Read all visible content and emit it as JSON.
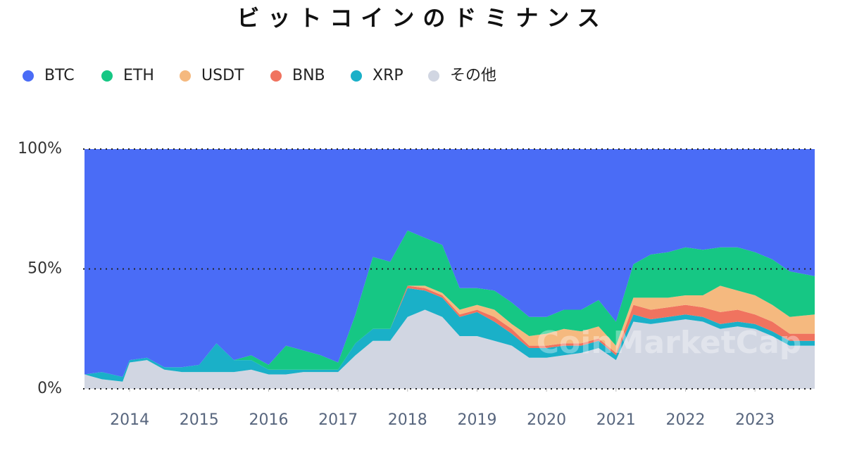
{
  "chart_data": {
    "type": "stacked_area",
    "title": "ビットコインのドミナンス",
    "watermark": "CoinMarketCap",
    "x": [
      2013.35,
      2013.6,
      2013.9,
      2014.0,
      2014.25,
      2014.5,
      2014.75,
      2015.0,
      2015.25,
      2015.5,
      2015.75,
      2016.0,
      2016.25,
      2016.5,
      2016.75,
      2017.0,
      2017.25,
      2017.5,
      2017.75,
      2018.0,
      2018.25,
      2018.5,
      2018.75,
      2019.0,
      2019.25,
      2019.5,
      2019.75,
      2020.0,
      2020.25,
      2020.5,
      2020.75,
      2021.0,
      2021.25,
      2021.5,
      2021.75,
      2022.0,
      2022.25,
      2022.5,
      2022.75,
      2023.0,
      2023.25,
      2023.5,
      2023.86
    ],
    "xlim": [
      2013.33,
      2023.87
    ],
    "xticks": [
      2014,
      2015,
      2016,
      2017,
      2018,
      2019,
      2020,
      2021,
      2022,
      2023
    ],
    "ylim": [
      0,
      100
    ],
    "yticks": [
      {
        "value": 0,
        "label": "0%"
      },
      {
        "value": 50,
        "label": "50%"
      },
      {
        "value": 100,
        "label": "100%"
      }
    ],
    "grid": true,
    "series": [
      {
        "name": "BTC",
        "color": "#4a6cf6",
        "values": [
          94,
          93,
          95,
          88,
          87,
          91,
          91,
          90,
          81,
          88,
          86,
          90,
          82,
          84,
          86,
          89,
          69,
          45,
          47,
          34,
          37,
          40,
          58,
          58,
          59,
          64,
          70,
          70,
          67,
          67,
          63,
          72,
          48,
          44,
          43,
          41,
          42,
          41,
          41,
          43,
          46,
          51,
          53
        ]
      },
      {
        "name": "ETH",
        "color": "#16c784",
        "values": [
          0,
          0,
          0,
          0,
          0,
          0,
          0,
          0,
          0,
          0,
          2,
          2,
          10,
          8,
          6,
          3,
          12,
          30,
          28,
          23,
          20,
          20,
          9,
          7,
          8,
          9,
          8,
          7,
          8,
          9,
          11,
          10,
          14,
          18,
          19,
          20,
          19,
          16,
          18,
          18,
          19,
          19,
          16
        ]
      },
      {
        "name": "USDT",
        "color": "#f5b97f",
        "values": [
          0,
          0,
          0,
          0,
          0,
          0,
          0,
          0,
          0,
          0,
          0,
          0,
          0,
          0,
          0,
          0,
          0,
          0,
          0,
          0,
          1,
          1,
          2,
          2,
          3,
          2,
          4,
          5,
          6,
          5,
          5,
          3,
          3,
          5,
          4,
          4,
          5,
          11,
          8,
          8,
          7,
          7,
          8
        ]
      },
      {
        "name": "BNB",
        "color": "#f0735f",
        "values": [
          0,
          0,
          0,
          0,
          0,
          0,
          0,
          0,
          0,
          0,
          0,
          0,
          0,
          0,
          0,
          0,
          0,
          0,
          0,
          1,
          1,
          1,
          1,
          1,
          2,
          2,
          1,
          1,
          1,
          1,
          1,
          1,
          4,
          4,
          4,
          4,
          4,
          5,
          5,
          4,
          4,
          3,
          3
        ]
      },
      {
        "name": "XRP",
        "color": "#1ab0c8",
        "values": [
          0,
          3,
          2,
          1,
          1,
          1,
          2,
          3,
          12,
          5,
          4,
          2,
          2,
          1,
          1,
          1,
          5,
          5,
          5,
          12,
          8,
          8,
          8,
          10,
          8,
          5,
          4,
          4,
          4,
          3,
          3,
          2,
          3,
          2,
          2,
          2,
          2,
          2,
          2,
          2,
          2,
          2,
          2
        ]
      },
      {
        "name": "その他",
        "color": "#d1d6e2",
        "values": [
          6,
          4,
          3,
          11,
          12,
          8,
          7,
          7,
          7,
          7,
          8,
          6,
          6,
          7,
          7,
          7,
          14,
          20,
          20,
          30,
          33,
          30,
          22,
          22,
          20,
          18,
          13,
          13,
          14,
          15,
          17,
          12,
          28,
          27,
          28,
          29,
          28,
          25,
          26,
          25,
          22,
          18,
          18
        ]
      }
    ]
  }
}
